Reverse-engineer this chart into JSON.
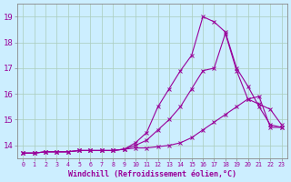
{
  "xlabel": "Windchill (Refroidissement éolien,°C)",
  "background_color": "#cceeff",
  "grid_color": "#aaccbb",
  "line_color": "#990099",
  "xlim": [
    -0.5,
    23.5
  ],
  "ylim": [
    13.5,
    19.5
  ],
  "yticks": [
    14,
    15,
    16,
    17,
    18,
    19
  ],
  "xtick_labels": [
    "0",
    "1",
    "2",
    "3",
    "4",
    "5",
    "6",
    "7",
    "8",
    "9",
    "10",
    "11",
    "12",
    "13",
    "14",
    "15",
    "16",
    "17",
    "18",
    "19",
    "20",
    "21",
    "22",
    "23"
  ],
  "series": [
    [
      13.7,
      13.7,
      13.75,
      13.75,
      13.75,
      13.8,
      13.8,
      13.8,
      13.8,
      13.85,
      13.9,
      13.9,
      13.95,
      14.0,
      14.1,
      14.3,
      14.6,
      14.9,
      15.2,
      15.5,
      15.8,
      15.9,
      14.7,
      14.7
    ],
    [
      13.7,
      13.7,
      13.75,
      13.75,
      13.75,
      13.8,
      13.8,
      13.8,
      13.8,
      13.85,
      14.0,
      14.2,
      14.6,
      15.0,
      15.5,
      16.2,
      16.9,
      17.0,
      18.35,
      16.9,
      15.8,
      15.6,
      15.4,
      14.8
    ],
    [
      13.7,
      13.7,
      13.75,
      13.75,
      13.75,
      13.8,
      13.8,
      13.8,
      13.8,
      13.85,
      14.1,
      14.5,
      15.5,
      16.2,
      16.9,
      17.5,
      19.0,
      18.8,
      18.4,
      17.0,
      16.3,
      15.5,
      14.8,
      14.7
    ]
  ]
}
